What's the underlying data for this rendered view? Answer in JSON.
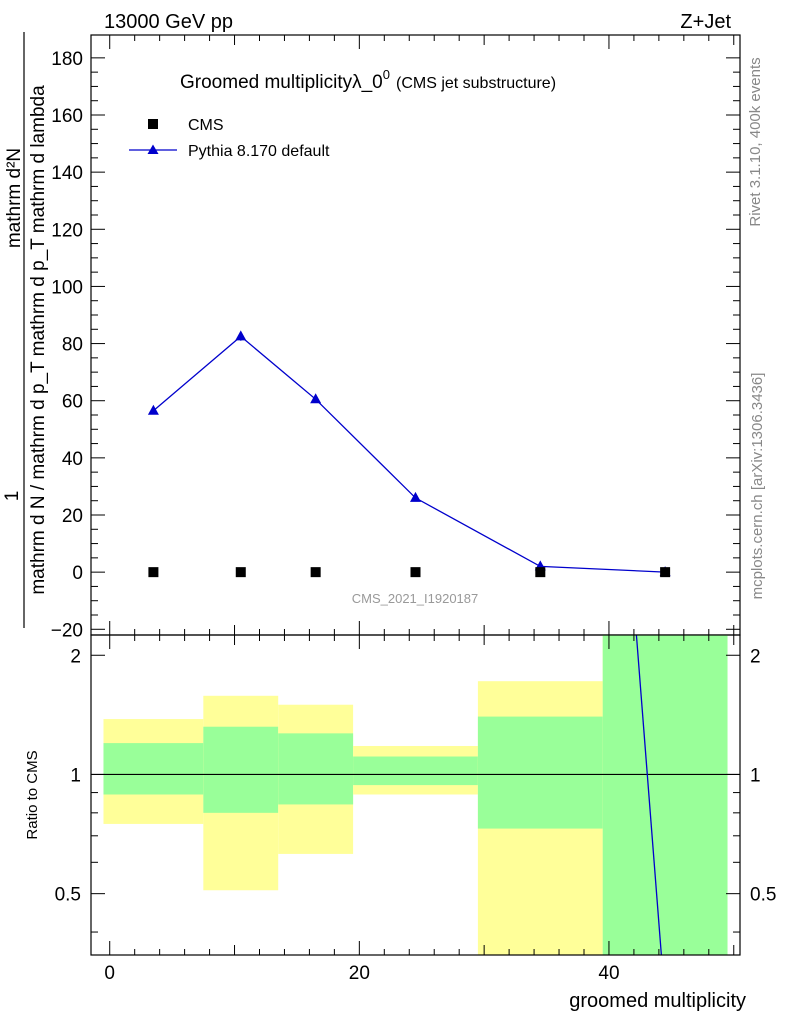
{
  "header": {
    "left": "13000 GeV pp",
    "right": "Z+Jet"
  },
  "side_labels": {
    "rivet": "Rivet 3.1.10,  400k events",
    "mcplots": "mcplots.cern.ch [arXiv:1306.3436]"
  },
  "chart_data": [
    {
      "type": "line",
      "title": "Groomed multiplicityλ_0",
      "title_sup": "0",
      "subtitle": "(CMS jet substructure)",
      "ylabel_top": "1",
      "ylabel_num": "mathrm d²N",
      "ylabel_den": "mathrm d N / mathrm d p_T mathrm d p_T mathrm d lambda",
      "watermark": "CMS_2021_I1920187",
      "ylim": [
        -22,
        188
      ],
      "y_ticks": [
        -20,
        0,
        20,
        40,
        60,
        80,
        100,
        120,
        140,
        160,
        180
      ],
      "legend": {
        "placement": "top-left",
        "entries": [
          "CMS",
          "Pythia 8.170 default"
        ]
      },
      "series": [
        {
          "name": "CMS",
          "marker": "square",
          "color": "#000000",
          "x": [
            3.5,
            10.5,
            16.5,
            24.5,
            34.5,
            44.5
          ],
          "y": [
            0,
            0,
            0,
            0,
            0,
            0
          ]
        },
        {
          "name": "Pythia 8.170 default",
          "marker": "triangle",
          "color": "#0000cc",
          "x": [
            3.5,
            10.5,
            16.5,
            24.5,
            34.5,
            44.5
          ],
          "y": [
            56.5,
            82.5,
            60.5,
            26,
            2,
            0
          ],
          "yerr": [
            1,
            1.5,
            1.2,
            0.8,
            0.3,
            0.2
          ]
        }
      ]
    },
    {
      "type": "area",
      "ylabel": "Ratio to CMS",
      "xlabel": "groomed multiplicity",
      "xlim": [
        -1.5,
        50.5
      ],
      "ylim": [
        0.35,
        2.25
      ],
      "x_ticks": [
        0,
        20,
        40
      ],
      "y_ticks": [
        0.5,
        1,
        2
      ],
      "reference_line": 1,
      "bands": [
        {
          "x0": -0.5,
          "x1": 7.5,
          "yellow": [
            0.75,
            1.38
          ],
          "green": [
            0.89,
            1.2
          ]
        },
        {
          "x0": 7.5,
          "x1": 13.5,
          "yellow": [
            0.51,
            1.58
          ],
          "green": [
            0.8,
            1.32
          ]
        },
        {
          "x0": 13.5,
          "x1": 19.5,
          "yellow": [
            0.63,
            1.5
          ],
          "green": [
            0.84,
            1.27
          ]
        },
        {
          "x0": 19.5,
          "x1": 29.5,
          "yellow": [
            0.89,
            1.18
          ],
          "green": [
            0.94,
            1.11
          ]
        },
        {
          "x0": 29.5,
          "x1": 39.5,
          "yellow": [
            0.35,
            1.72
          ],
          "green": [
            0.73,
            1.4
          ]
        },
        {
          "x0": 39.5,
          "x1": 49.5,
          "yellow": [
            0.35,
            2.25
          ],
          "green": [
            0.35,
            2.25
          ]
        }
      ],
      "ratio_line": {
        "color": "#0000cc",
        "x": [
          42.2,
          44.2
        ],
        "y": [
          2.25,
          0.35
        ]
      }
    }
  ]
}
